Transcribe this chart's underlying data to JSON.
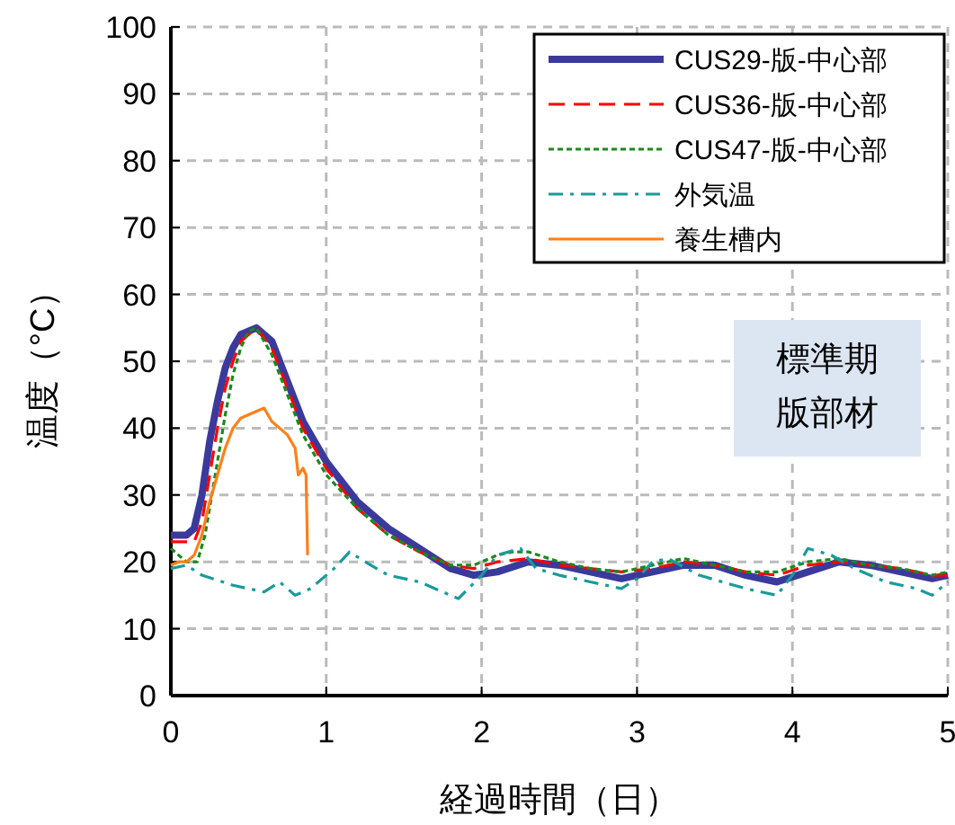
{
  "chart_data": {
    "type": "line",
    "xlabel": "経過時間（日）",
    "ylabel": "温度（°C）",
    "xlim": [
      0,
      5
    ],
    "xticks": [
      0,
      1,
      2,
      3,
      4,
      5
    ],
    "ylim": [
      0,
      100
    ],
    "yticks": [
      0,
      10,
      20,
      30,
      40,
      50,
      60,
      70,
      80,
      90,
      100
    ],
    "grid": true,
    "legend": "top right",
    "annotations": [
      "標準期",
      "版部材"
    ],
    "series": [
      {
        "name": "CUS29-版-中心部",
        "color": "#3a3a9c",
        "line_style": "solid",
        "x": [
          0,
          0.1,
          0.15,
          0.2,
          0.25,
          0.3,
          0.35,
          0.4,
          0.45,
          0.55,
          0.65,
          0.75,
          0.85,
          1.0,
          1.2,
          1.4,
          1.6,
          1.8,
          1.95,
          2.1,
          2.3,
          2.5,
          2.7,
          2.9,
          3.1,
          3.3,
          3.5,
          3.7,
          3.9,
          4.1,
          4.3,
          4.5,
          4.7,
          4.9,
          5
        ],
        "values": [
          24,
          24,
          25,
          30,
          38,
          44,
          49,
          52,
          54,
          55,
          53,
          47,
          41,
          35,
          29,
          25,
          22,
          19,
          18,
          18.5,
          20,
          19.5,
          18.5,
          17.5,
          18.5,
          19.5,
          19.5,
          18,
          17,
          18.5,
          20,
          19.5,
          18.5,
          17.5,
          18
        ]
      },
      {
        "name": "CUS36-版-中心部",
        "color": "#ff0000",
        "line_style": "dashed",
        "x": [
          0,
          0.15,
          0.2,
          0.25,
          0.3,
          0.35,
          0.4,
          0.45,
          0.55,
          0.65,
          0.75,
          0.85,
          1.0,
          1.2,
          1.4,
          1.6,
          1.8,
          1.95,
          2.1,
          2.3,
          2.5,
          2.7,
          2.9,
          3.1,
          3.3,
          3.5,
          3.7,
          3.9,
          4.1,
          4.3,
          4.5,
          4.7,
          4.9,
          5
        ],
        "values": [
          23,
          23,
          26,
          33,
          40,
          46,
          50,
          53,
          55,
          52,
          46,
          40,
          34,
          28,
          24,
          21.5,
          19.5,
          19,
          20,
          20.5,
          19.5,
          19,
          18.5,
          19,
          20,
          19.5,
          18.5,
          18,
          19.5,
          20,
          19.5,
          19,
          18,
          18
        ]
      },
      {
        "name": "CUS47-版-中心部",
        "color": "#1a8a1a",
        "line_style": "dotted",
        "x": [
          0,
          0.1,
          0.17,
          0.22,
          0.3,
          0.35,
          0.4,
          0.45,
          0.5,
          0.55,
          0.65,
          0.75,
          0.85,
          1.0,
          1.2,
          1.4,
          1.6,
          1.8,
          1.95,
          2.1,
          2.2,
          2.3,
          2.5,
          2.7,
          2.9,
          3.1,
          3.3,
          3.5,
          3.7,
          3.9,
          4.1,
          4.3,
          4.5,
          4.7,
          4.9,
          5
        ],
        "values": [
          22,
          20,
          20,
          24,
          35,
          42,
          48,
          52,
          54.5,
          55,
          51,
          45,
          39,
          33,
          28,
          24,
          21.5,
          19.5,
          19.5,
          21,
          21.5,
          21.5,
          20,
          19,
          18.5,
          19.5,
          20.5,
          19.5,
          18.5,
          18.5,
          20,
          20.5,
          19.5,
          19,
          18,
          18.5
        ]
      },
      {
        "name": "外気温",
        "color": "#1a9a9a",
        "line_style": "dashdot",
        "x": [
          0,
          0.1,
          0.2,
          0.4,
          0.6,
          0.7,
          0.8,
          0.9,
          1.05,
          1.15,
          1.25,
          1.4,
          1.6,
          1.85,
          2.0,
          2.1,
          2.25,
          2.35,
          2.5,
          2.7,
          2.9,
          3.0,
          3.1,
          3.2,
          3.4,
          3.7,
          3.9,
          4.0,
          4.1,
          4.25,
          4.4,
          4.6,
          4.8,
          4.9,
          5
        ],
        "values": [
          19,
          19.5,
          18,
          16.5,
          15.5,
          17,
          15,
          16,
          19,
          21.5,
          20,
          18,
          17,
          14.5,
          18,
          21,
          22,
          19,
          18,
          17,
          16,
          17.5,
          20,
          20.5,
          18,
          16,
          15,
          18,
          22,
          21,
          19,
          17,
          16,
          15,
          17
        ]
      },
      {
        "name": "養生槽内",
        "color": "#ff7f1a",
        "line_style": "solid",
        "x": [
          0,
          0.05,
          0.1,
          0.15,
          0.2,
          0.25,
          0.3,
          0.35,
          0.4,
          0.45,
          0.5,
          0.55,
          0.6,
          0.65,
          0.7,
          0.75,
          0.8,
          0.82,
          0.85,
          0.87,
          0.88
        ],
        "values": [
          19.5,
          20,
          20,
          21,
          24,
          29,
          33,
          37,
          40,
          41.5,
          42,
          42.5,
          43,
          41,
          40,
          39,
          37,
          33,
          34,
          33,
          21
        ]
      }
    ]
  }
}
